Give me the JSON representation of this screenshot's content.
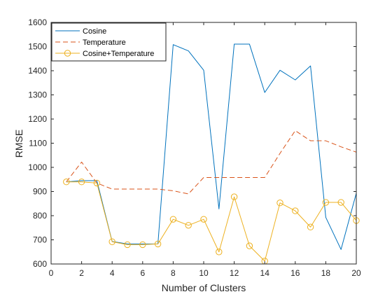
{
  "chart_data": {
    "type": "line",
    "title": "",
    "xlabel": "Number of Clusters",
    "ylabel": "RMSE",
    "xlim": [
      0,
      20
    ],
    "ylim": [
      600,
      1600
    ],
    "xticks": [
      0,
      2,
      4,
      6,
      8,
      10,
      12,
      14,
      16,
      18,
      20
    ],
    "yticks": [
      600,
      700,
      800,
      900,
      1000,
      1100,
      1200,
      1300,
      1400,
      1500,
      1600
    ],
    "grid": false,
    "legend_position": "top-left",
    "x": [
      1,
      2,
      3,
      4,
      5,
      6,
      7,
      8,
      9,
      10,
      11,
      12,
      13,
      14,
      15,
      16,
      17,
      18,
      19,
      20
    ],
    "series": [
      {
        "name": "Cosine",
        "color": "#0072BD",
        "line_style": "solid",
        "marker": "none",
        "values": [
          940,
          945,
          945,
          693,
          683,
          683,
          683,
          1508,
          1482,
          1402,
          828,
          1510,
          1510,
          1310,
          1402,
          1362,
          1420,
          793,
          660,
          893
        ]
      },
      {
        "name": "Temperature",
        "color": "#D95319",
        "line_style": "dashed",
        "marker": "none",
        "values": [
          940,
          1022,
          935,
          910,
          910,
          910,
          910,
          903,
          890,
          958,
          958,
          958,
          958,
          958,
          1058,
          1152,
          1110,
          1110,
          1085,
          1063
        ]
      },
      {
        "name": "Cosine+Temperature",
        "color": "#EDB120",
        "line_style": "solid",
        "marker": "circle",
        "values": [
          940,
          940,
          935,
          692,
          680,
          680,
          683,
          785,
          760,
          785,
          650,
          878,
          675,
          612,
          853,
          820,
          753,
          855,
          855,
          780
        ]
      }
    ]
  }
}
